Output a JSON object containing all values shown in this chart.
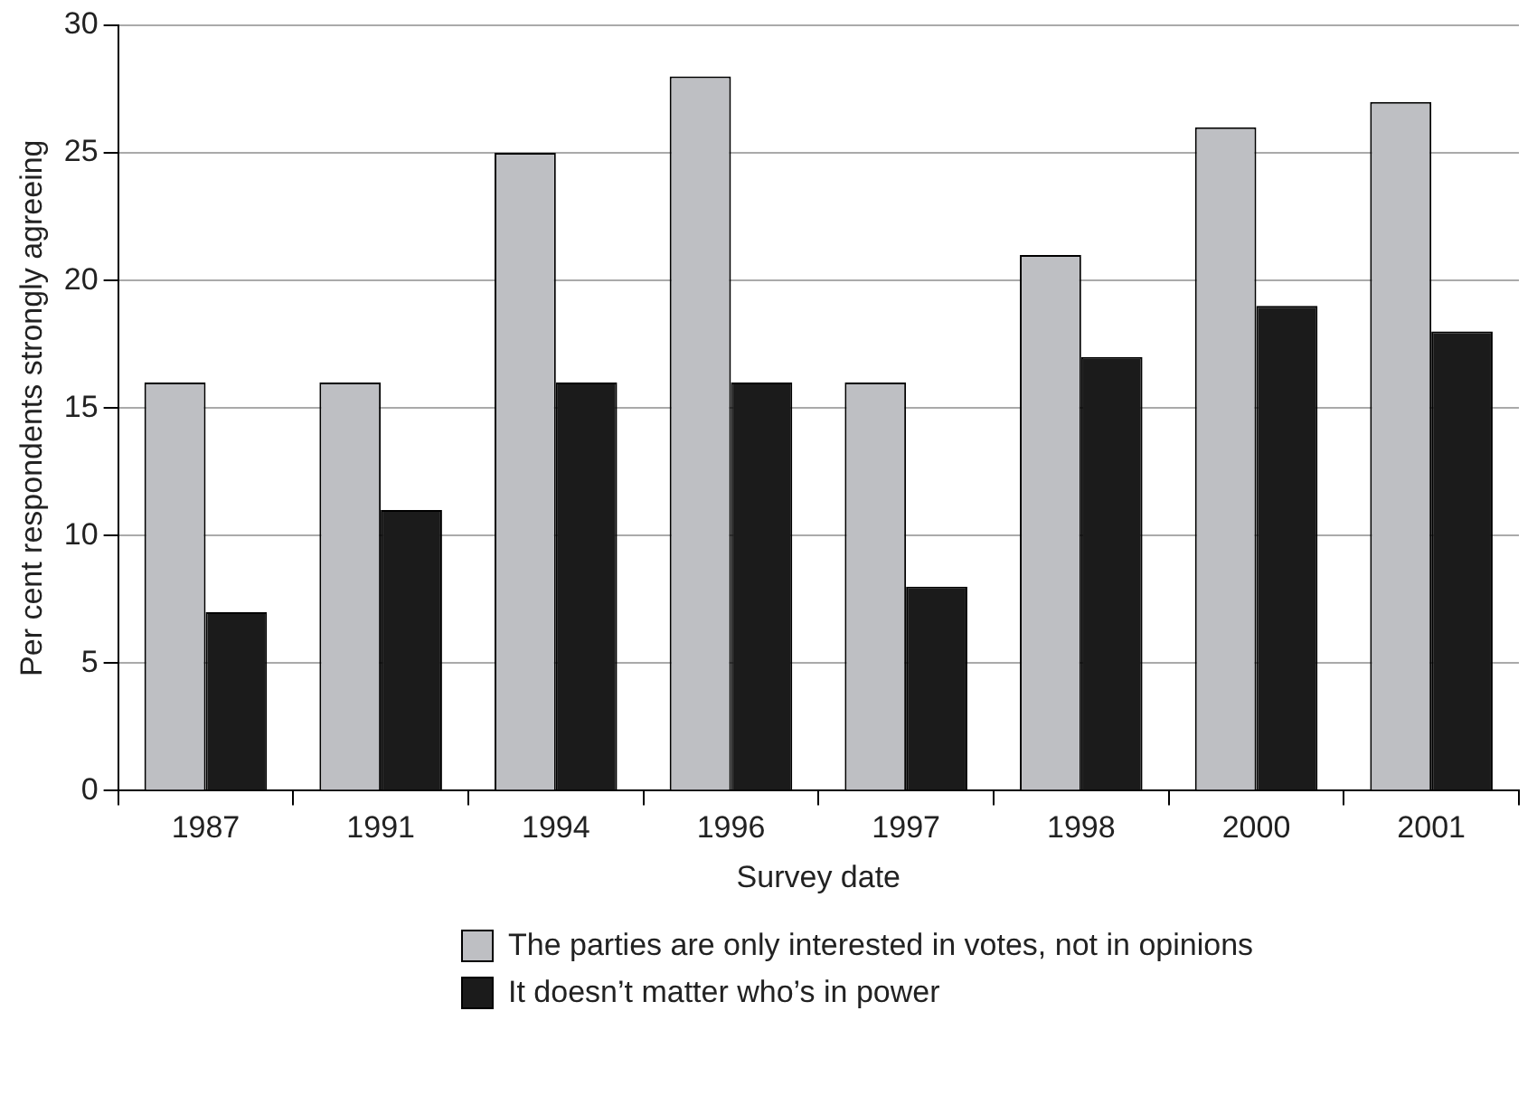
{
  "chart_data": {
    "type": "bar",
    "xlabel": "Survey date",
    "ylabel": "Per cent respondents strongly agreeing",
    "categories": [
      "1987",
      "1991",
      "1994",
      "1996",
      "1997",
      "1998",
      "2000",
      "2001"
    ],
    "series": [
      {
        "name": "The parties are only interested in votes, not in opinions",
        "color": "#bebfc3",
        "values": [
          16,
          16,
          25,
          28,
          16,
          21,
          26,
          27
        ]
      },
      {
        "name": "It doesn’t matter who’s in power",
        "color": "#1b1b1b",
        "values": [
          7,
          11,
          16,
          16,
          8,
          17,
          19,
          18
        ]
      }
    ],
    "ylim": [
      0,
      30
    ],
    "yticks": [
      0,
      5,
      10,
      15,
      20,
      25,
      30
    ],
    "grid": "y",
    "legend": "bottom"
  }
}
